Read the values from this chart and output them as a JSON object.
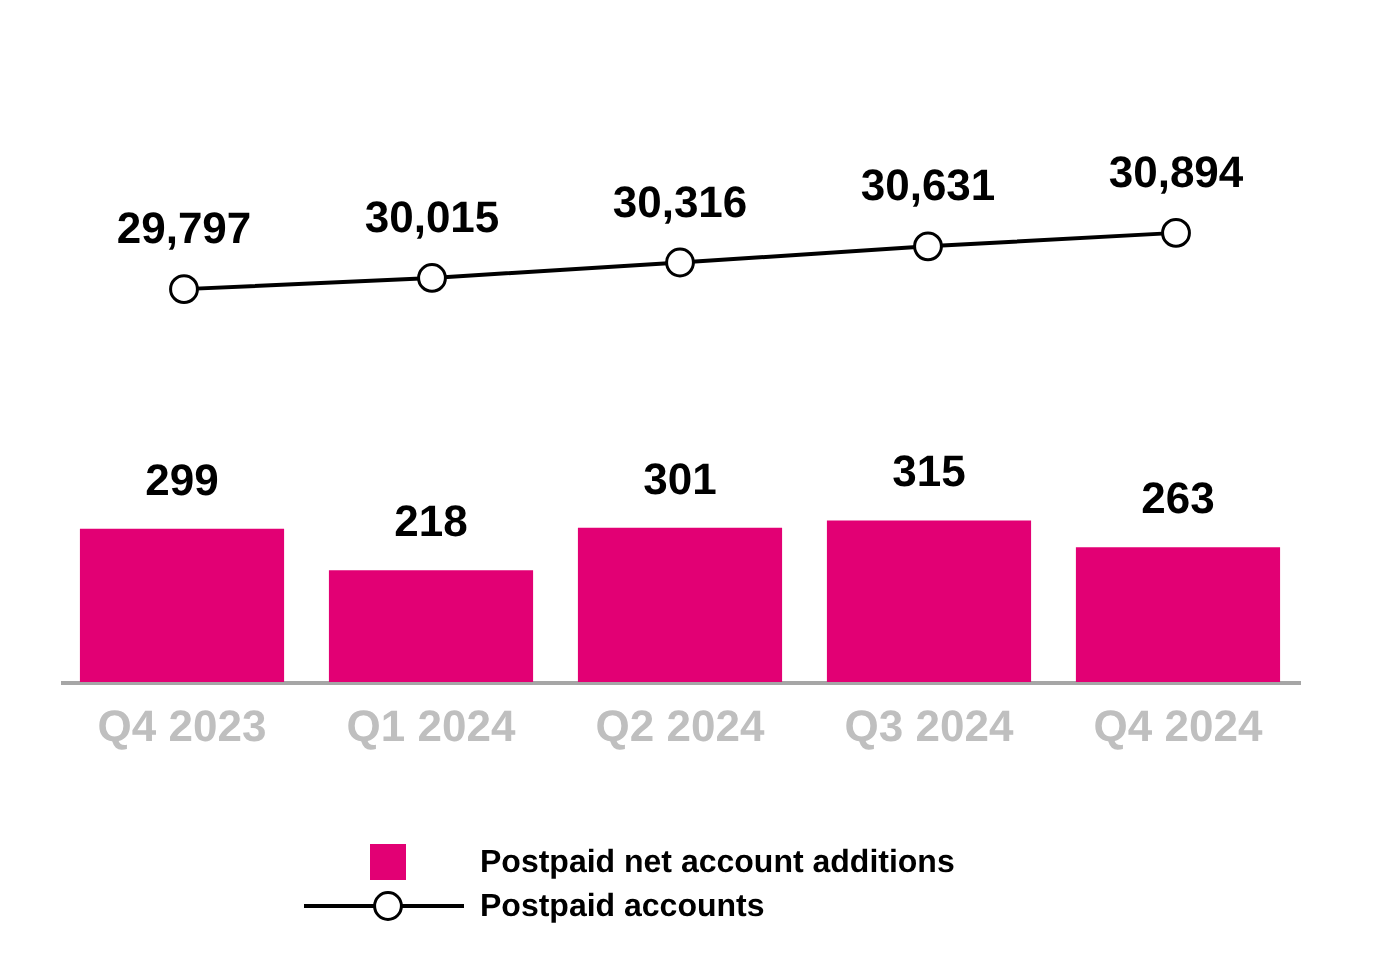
{
  "chart_data": [
    {
      "type": "line",
      "categories": [
        null,
        null,
        null,
        null,
        null
      ],
      "series": [
        {
          "name": "Postpaid accounts",
          "color": "#000000",
          "marker": "circle",
          "values": [
            29797,
            30015,
            30316,
            30631,
            30894
          ],
          "value_labels": [
            "29,797",
            "30,015",
            "30,316",
            "30,631",
            "30,894"
          ]
        }
      ],
      "tick_labels": false
    },
    {
      "type": "bar",
      "categories": [
        "Q4 2023",
        "Q1 2024",
        "Q2 2024",
        "Q3 2024",
        "Q4 2024"
      ],
      "series": [
        {
          "name": "Postpaid net account additions",
          "color": "#e20074",
          "values": [
            299,
            218,
            301,
            315,
            263
          ]
        }
      ],
      "data_labels": true,
      "tick_labels": "x",
      "legend": "bottom"
    }
  ]
}
